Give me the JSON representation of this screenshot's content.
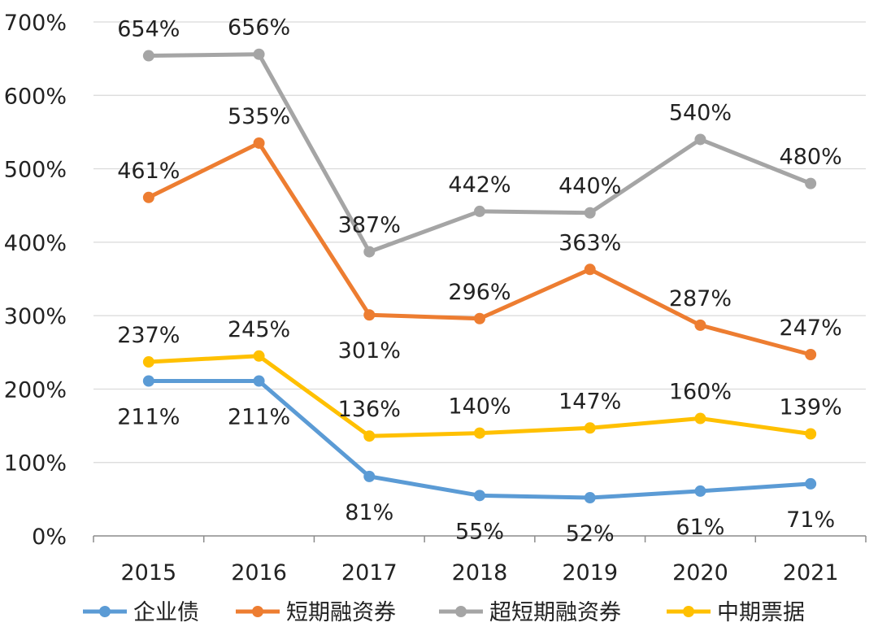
{
  "chart_data": {
    "type": "line",
    "categories": [
      "2015",
      "2016",
      "2017",
      "2018",
      "2019",
      "2020",
      "2021"
    ],
    "yticks": [
      "0%",
      "100%",
      "200%",
      "300%",
      "400%",
      "500%",
      "600%",
      "700%"
    ],
    "ylim": [
      0,
      700
    ],
    "grid": true,
    "legend": "bottom",
    "series": [
      {
        "name": "企业债",
        "color": "#5B9BD5",
        "values": [
          211,
          211,
          81,
          55,
          52,
          61,
          71
        ],
        "labels": [
          "211%",
          "211%",
          "81%",
          "55%",
          "52%",
          "61%",
          "71%"
        ]
      },
      {
        "name": "短期融资券",
        "color": "#ED7D31",
        "values": [
          461,
          535,
          301,
          296,
          363,
          287,
          247
        ],
        "labels": [
          "461%",
          "535%",
          "301%",
          "296%",
          "363%",
          "287%",
          "247%"
        ]
      },
      {
        "name": "超短期融资券",
        "color": "#A5A5A5",
        "values": [
          654,
          656,
          387,
          442,
          440,
          540,
          480
        ],
        "labels": [
          "654%",
          "656%",
          "387%",
          "442%",
          "440%",
          "540%",
          "480%"
        ]
      },
      {
        "name": "中期票据",
        "color": "#FFC000",
        "values": [
          237,
          245,
          136,
          140,
          147,
          160,
          139
        ],
        "labels": [
          "237%",
          "245%",
          "136%",
          "140%",
          "147%",
          "160%",
          "139%"
        ]
      }
    ]
  }
}
